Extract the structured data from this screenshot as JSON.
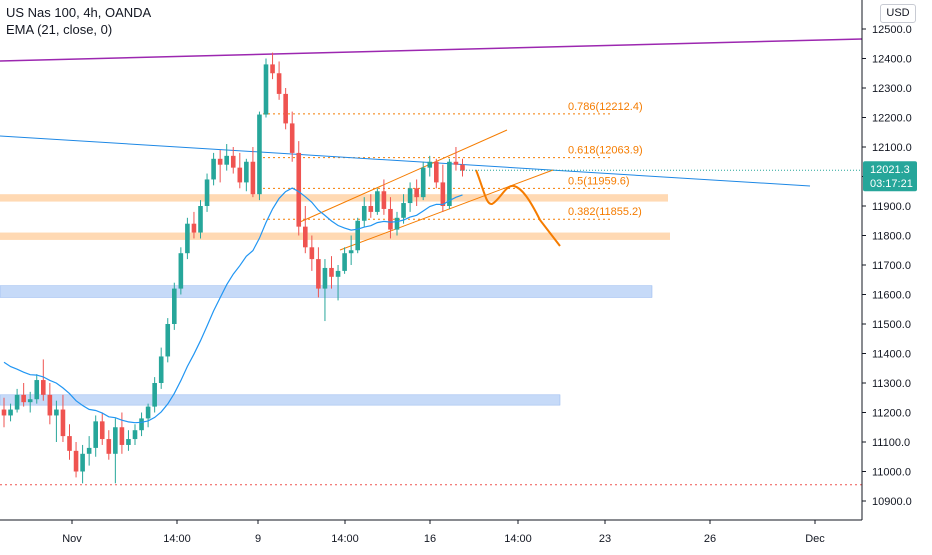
{
  "legend": {
    "symbol_line": "US Nas 100, 4h, OANDA",
    "indicator_line": "EMA (21, close, 0)"
  },
  "currency_button": "USD",
  "price_badge": {
    "price": "12021.3",
    "timer": "03:17:21"
  },
  "colors": {
    "up": "#26a69a",
    "down": "#ef5350",
    "ema": "#2196f3",
    "trend_purple": "#9c27b0",
    "trend_blue": "#1e88e5",
    "fib": "#f57c00",
    "zone_orange": "#ffcc99",
    "zone_blue": "#b3cdf5",
    "badge": "#26a69a"
  },
  "chart_data": {
    "type": "candlestick",
    "title": "US Nas 100, 4h, OANDA",
    "y_axis": {
      "range": [
        10850,
        12550
      ],
      "ticks": [
        "12500.0",
        "12400.0",
        "12300.0",
        "12200.0",
        "12100.0",
        "12000.0",
        "11900.0",
        "11800.0",
        "11700.0",
        "11600.0",
        "11500.0",
        "11400.0",
        "11300.0",
        "11200.0",
        "11100.0",
        "11000.0",
        "10900.0"
      ]
    },
    "x_axis": {
      "ticks": [
        "Nov",
        "14:00",
        "9",
        "14:00",
        "16",
        "14:00",
        "23",
        "26",
        "Dec"
      ]
    },
    "fib_levels": [
      {
        "label": "0.786(12212.4)",
        "value": 12212.4
      },
      {
        "label": "0.618(12063.9)",
        "value": 12063.9
      },
      {
        "label": "0.5(11959.6)",
        "value": 11959.6
      },
      {
        "label": "0.382(11855.2)",
        "value": 11855.2
      }
    ],
    "zones": [
      {
        "color": "orange",
        "from": 11915,
        "to": 11940
      },
      {
        "color": "orange",
        "from": 11785,
        "to": 11810
      },
      {
        "color": "blue",
        "from": 11590,
        "to": 11630
      },
      {
        "color": "blue",
        "from": 11225,
        "to": 11260
      }
    ],
    "support_dotted": 10955,
    "candles": [
      [
        11210,
        11250,
        11150,
        11190
      ],
      [
        11190,
        11230,
        11170,
        11210
      ],
      [
        11210,
        11280,
        11200,
        11260
      ],
      [
        11260,
        11300,
        11220,
        11235
      ],
      [
        11235,
        11270,
        11200,
        11245
      ],
      [
        11245,
        11330,
        11230,
        11310
      ],
      [
        11310,
        11380,
        11240,
        11260
      ],
      [
        11260,
        11300,
        11160,
        11190
      ],
      [
        11190,
        11240,
        11100,
        11210
      ],
      [
        11210,
        11260,
        11100,
        11120
      ],
      [
        11120,
        11160,
        11040,
        11070
      ],
      [
        11070,
        11100,
        10980,
        11000
      ],
      [
        11000,
        11090,
        10960,
        11060
      ],
      [
        11060,
        11120,
        11020,
        11080
      ],
      [
        11080,
        11190,
        11050,
        11170
      ],
      [
        11170,
        11200,
        11090,
        11110
      ],
      [
        11110,
        11140,
        11040,
        11060
      ],
      [
        11060,
        11180,
        10960,
        11150
      ],
      [
        11150,
        11200,
        11060,
        11090
      ],
      [
        11090,
        11140,
        11070,
        11110
      ],
      [
        11110,
        11160,
        11090,
        11140
      ],
      [
        11140,
        11200,
        11120,
        11180
      ],
      [
        11180,
        11230,
        11150,
        11220
      ],
      [
        11220,
        11320,
        11200,
        11300
      ],
      [
        11300,
        11420,
        11280,
        11390
      ],
      [
        11390,
        11520,
        11370,
        11500
      ],
      [
        11500,
        11640,
        11480,
        11620
      ],
      [
        11620,
        11760,
        11600,
        11740
      ],
      [
        11740,
        11860,
        11720,
        11840
      ],
      [
        11840,
        11880,
        11790,
        11810
      ],
      [
        11810,
        11920,
        11790,
        11900
      ],
      [
        11900,
        12010,
        11880,
        11990
      ],
      [
        11990,
        12080,
        11970,
        12060
      ],
      [
        12060,
        12090,
        11980,
        12040
      ],
      [
        12040,
        12110,
        12020,
        12070
      ],
      [
        12070,
        12100,
        12010,
        12030
      ],
      [
        12030,
        12080,
        11960,
        11980
      ],
      [
        11980,
        12060,
        11950,
        12050
      ],
      [
        12050,
        12100,
        11930,
        11940
      ],
      [
        11940,
        12220,
        11920,
        12210
      ],
      [
        12210,
        12400,
        12200,
        12380
      ],
      [
        12380,
        12420,
        12330,
        12350
      ],
      [
        12350,
        12390,
        12260,
        12280
      ],
      [
        12280,
        12300,
        12160,
        12180
      ],
      [
        12180,
        12220,
        12050,
        12080
      ],
      [
        12080,
        12120,
        11800,
        11830
      ],
      [
        11830,
        11900,
        11740,
        11760
      ],
      [
        11760,
        11800,
        11680,
        11720
      ],
      [
        11720,
        11760,
        11590,
        11620
      ],
      [
        11620,
        11720,
        11510,
        11690
      ],
      [
        11690,
        11730,
        11620,
        11660
      ],
      [
        11660,
        11700,
        11580,
        11680
      ],
      [
        11680,
        11760,
        11670,
        11740
      ],
      [
        11740,
        11800,
        11700,
        11750
      ],
      [
        11750,
        11860,
        11740,
        11850
      ],
      [
        11850,
        11930,
        11830,
        11900
      ],
      [
        11900,
        11940,
        11860,
        11880
      ],
      [
        11880,
        11960,
        11870,
        11950
      ],
      [
        11950,
        11990,
        11870,
        11890
      ],
      [
        11890,
        11930,
        11790,
        11820
      ],
      [
        11820,
        11880,
        11800,
        11860
      ],
      [
        11860,
        11940,
        11840,
        11910
      ],
      [
        11910,
        11980,
        11880,
        11960
      ],
      [
        11960,
        11990,
        11900,
        11930
      ],
      [
        11930,
        12050,
        11920,
        12030
      ],
      [
        12030,
        12070,
        12000,
        12050
      ],
      [
        12050,
        12060,
        11960,
        11980
      ],
      [
        11980,
        12040,
        11880,
        11900
      ],
      [
        11900,
        12060,
        11890,
        12050
      ],
      [
        12050,
        12100,
        12020,
        12040
      ],
      [
        12040,
        12060,
        12000,
        12020
      ]
    ]
  }
}
